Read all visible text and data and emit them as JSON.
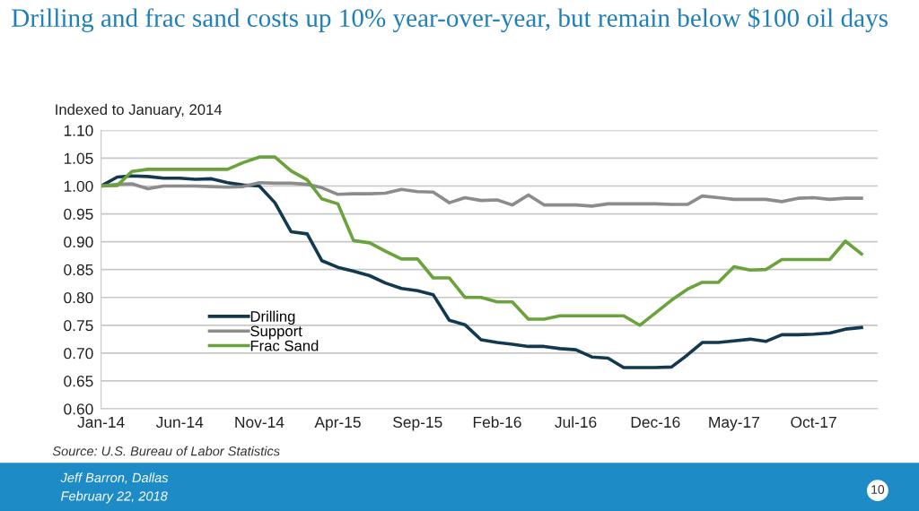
{
  "chart_data": {
    "type": "line",
    "title": "Drilling and frac sand costs up 10% year-over-year, but remain below $100 oil days",
    "ylabel": "Indexed to January, 2014",
    "x": [
      "2014-01",
      "2014-02",
      "2014-03",
      "2014-04",
      "2014-05",
      "2014-06",
      "2014-07",
      "2014-08",
      "2014-09",
      "2014-10",
      "2014-11",
      "2014-12",
      "2015-01",
      "2015-02",
      "2015-03",
      "2015-04",
      "2015-05",
      "2015-06",
      "2015-07",
      "2015-08",
      "2015-09",
      "2015-10",
      "2015-11",
      "2015-12",
      "2016-01",
      "2016-02",
      "2016-03",
      "2016-04",
      "2016-05",
      "2016-06",
      "2016-07",
      "2016-08",
      "2016-09",
      "2016-10",
      "2016-11",
      "2016-12",
      "2017-01",
      "2017-02",
      "2017-03",
      "2017-04",
      "2017-05",
      "2017-06",
      "2017-07",
      "2017-08",
      "2017-09",
      "2017-10",
      "2017-11",
      "2017-12",
      "2018-01"
    ],
    "series": [
      {
        "name": "Drilling",
        "color": "#12394f",
        "values": [
          1.0,
          1.016,
          1.018,
          1.017,
          1.014,
          1.014,
          1.012,
          1.013,
          1.006,
          1.002,
          1.0,
          0.97,
          0.918,
          0.914,
          0.866,
          0.854,
          0.847,
          0.839,
          0.826,
          0.816,
          0.812,
          0.805,
          0.759,
          0.751,
          0.724,
          0.719,
          0.716,
          0.712,
          0.712,
          0.708,
          0.706,
          0.693,
          0.691,
          0.674,
          0.674,
          0.674,
          0.675,
          0.697,
          0.719,
          0.719,
          0.722,
          0.725,
          0.721,
          0.733,
          0.733,
          0.734,
          0.736,
          0.743,
          0.746
        ]
      },
      {
        "name": "Support",
        "color": "#8c8c8c",
        "values": [
          1.0,
          1.003,
          1.004,
          0.995,
          1.0,
          1.0,
          1.0,
          0.999,
          0.998,
          0.999,
          1.006,
          1.005,
          1.005,
          1.003,
          0.997,
          0.985,
          0.986,
          0.986,
          0.987,
          0.994,
          0.99,
          0.989,
          0.97,
          0.979,
          0.974,
          0.975,
          0.966,
          0.984,
          0.966,
          0.966,
          0.966,
          0.964,
          0.968,
          0.968,
          0.968,
          0.968,
          0.967,
          0.967,
          0.982,
          0.979,
          0.976,
          0.976,
          0.976,
          0.972,
          0.978,
          0.979,
          0.976,
          0.978,
          0.978
        ]
      },
      {
        "name": "Frac Sand",
        "color": "#6aa23c",
        "values": [
          1.0,
          1.001,
          1.026,
          1.03,
          1.03,
          1.03,
          1.03,
          1.03,
          1.03,
          1.042,
          1.052,
          1.052,
          1.027,
          1.011,
          0.977,
          0.968,
          0.902,
          0.898,
          0.883,
          0.869,
          0.869,
          0.835,
          0.835,
          0.8,
          0.8,
          0.792,
          0.792,
          0.761,
          0.761,
          0.767,
          0.767,
          0.767,
          0.767,
          0.767,
          0.75,
          0.772,
          0.795,
          0.815,
          0.827,
          0.827,
          0.855,
          0.849,
          0.85,
          0.868,
          0.868,
          0.868,
          0.868,
          0.901,
          0.878
        ]
      }
    ],
    "xlim": [
      "2014-01",
      "2018-02"
    ],
    "xticks": [
      {
        "value": "2014-01",
        "label": "Jan-14"
      },
      {
        "value": "2014-06",
        "label": "Jun-14"
      },
      {
        "value": "2014-11",
        "label": "Nov-14"
      },
      {
        "value": "2015-04",
        "label": "Apr-15"
      },
      {
        "value": "2015-09",
        "label": "Sep-15"
      },
      {
        "value": "2016-02",
        "label": "Feb-16"
      },
      {
        "value": "2016-07",
        "label": "Jul-16"
      },
      {
        "value": "2016-12",
        "label": "Dec-16"
      },
      {
        "value": "2017-05",
        "label": "May-17"
      },
      {
        "value": "2017-10",
        "label": "Oct-17"
      }
    ],
    "ylim": [
      0.6,
      1.1
    ],
    "yticks": [
      {
        "value": 0.6,
        "label": "0.60"
      },
      {
        "value": 0.65,
        "label": "0.65"
      },
      {
        "value": 0.7,
        "label": "0.70"
      },
      {
        "value": 0.75,
        "label": "0.75"
      },
      {
        "value": 0.8,
        "label": "0.80"
      },
      {
        "value": 0.85,
        "label": "0.85"
      },
      {
        "value": 0.9,
        "label": "0.90"
      },
      {
        "value": 0.95,
        "label": "0.95"
      },
      {
        "value": 1.0,
        "label": "1.00"
      },
      {
        "value": 1.05,
        "label": "1.05"
      },
      {
        "value": 1.1,
        "label": "1.10"
      }
    ],
    "grid": "y",
    "legend": "bottom left",
    "line_style": "solid",
    "marker": "none",
    "annotations": [
      "Source: U.S. Bureau of Labor Statistics",
      "Jeff Barron, Dallas",
      "February 22, 2018",
      "10"
    ]
  }
}
